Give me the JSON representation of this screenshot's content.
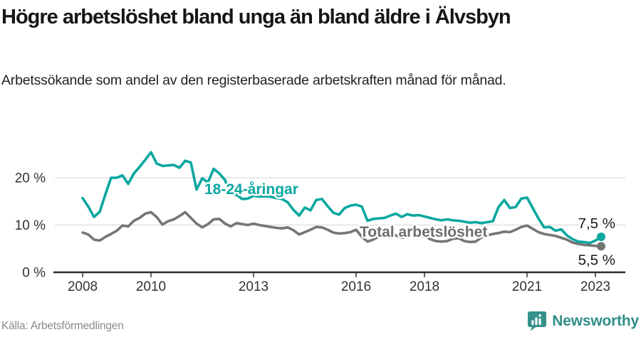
{
  "header": {
    "title": "Högre arbetslöshet bland unga än bland äldre i Älvsbyn",
    "subtitle": "Arbetssökande som andel av den registerbaserade arbetskraften månad för månad."
  },
  "footer": {
    "source": "Källa: Arbetsförmedlingen",
    "brand": "Newsworthy"
  },
  "colors": {
    "youth_line": "#0ba7a0",
    "total_line": "#757575",
    "total_label": "#6e6e6e",
    "grid": "#dcdcdc",
    "axis": "#2f2f2f",
    "tick_text": "#333333",
    "end_label_text": "#1a1a1a",
    "brand_teal": "#2f8e89"
  },
  "chart_data": {
    "type": "line",
    "title": "Högre arbetslöshet bland unga än bland äldre i Älvsbyn",
    "unit": "%",
    "x_start": "2008-01",
    "x_end": "2023-03",
    "sampling_months": 2,
    "ylim": [
      0,
      27
    ],
    "grid": "horizontal",
    "legend_position": "inline-labels",
    "yticks": [
      {
        "value": 0,
        "label": "0 %"
      },
      {
        "value": 10,
        "label": "10 %"
      },
      {
        "value": 20,
        "label": "20 %"
      }
    ],
    "xticks": [
      {
        "label": "2008",
        "month": 0
      },
      {
        "label": "2010",
        "month": 24
      },
      {
        "label": "2013",
        "month": 60
      },
      {
        "label": "2016",
        "month": 96
      },
      {
        "label": "2018",
        "month": 120
      },
      {
        "label": "2021",
        "month": 156
      },
      {
        "label": "2023",
        "month": 180
      }
    ],
    "series": [
      {
        "name": "18-24-åringar",
        "end_label": "7,5 %",
        "end_value": 7.5,
        "values": [
          15.7,
          13.9,
          11.7,
          12.8,
          16.5,
          20.0,
          20.0,
          20.5,
          18.7,
          20.9,
          22.3,
          23.8,
          25.4,
          23.0,
          22.5,
          22.6,
          22.7,
          22.1,
          23.6,
          23.2,
          17.5,
          19.9,
          19.0,
          21.9,
          20.9,
          19.5,
          16.5,
          16.4,
          15.5,
          15.6,
          16.2,
          16.0,
          16.1,
          16.0,
          15.7,
          15.5,
          14.8,
          13.2,
          12.0,
          13.7,
          13.1,
          15.3,
          15.5,
          14.0,
          12.6,
          12.2,
          13.6,
          14.1,
          14.3,
          13.9,
          10.9,
          11.3,
          11.4,
          11.5,
          12.0,
          12.4,
          11.7,
          12.3,
          12.0,
          12.1,
          11.8,
          11.5,
          11.2,
          11.0,
          11.2,
          11.0,
          10.9,
          10.7,
          10.5,
          10.6,
          10.4,
          10.6,
          10.8,
          13.8,
          15.3,
          13.6,
          13.8,
          15.6,
          15.8,
          13.6,
          11.4,
          9.5,
          9.6,
          8.8,
          9.1,
          7.8,
          7.0,
          6.5,
          6.4,
          6.2,
          6.7,
          7.5
        ]
      },
      {
        "name": "Total arbetslöshet",
        "end_label": "5,5 %",
        "end_value": 5.5,
        "values": [
          8.4,
          8.0,
          6.9,
          6.7,
          7.5,
          8.1,
          8.8,
          9.9,
          9.7,
          10.9,
          11.5,
          12.4,
          12.7,
          11.7,
          10.1,
          10.8,
          11.2,
          11.9,
          12.7,
          11.5,
          10.3,
          9.5,
          10.2,
          11.2,
          11.3,
          10.3,
          9.7,
          10.4,
          10.2,
          10.0,
          10.3,
          10.0,
          9.8,
          9.6,
          9.4,
          9.3,
          9.5,
          8.9,
          8.0,
          8.5,
          9.0,
          9.6,
          9.5,
          9.0,
          8.4,
          8.2,
          8.3,
          8.5,
          9.0,
          7.5,
          6.5,
          6.9,
          7.6,
          8.0,
          8.0,
          7.8,
          7.3,
          7.5,
          7.7,
          7.6,
          7.7,
          7.0,
          6.6,
          6.5,
          6.6,
          7.1,
          7.2,
          6.6,
          6.4,
          6.5,
          7.4,
          7.8,
          8.1,
          8.3,
          8.6,
          8.5,
          9.0,
          9.6,
          9.9,
          9.2,
          8.5,
          8.1,
          7.9,
          7.7,
          7.3,
          6.9,
          6.3,
          6.0,
          5.8,
          5.7,
          5.6,
          5.5
        ]
      }
    ]
  }
}
